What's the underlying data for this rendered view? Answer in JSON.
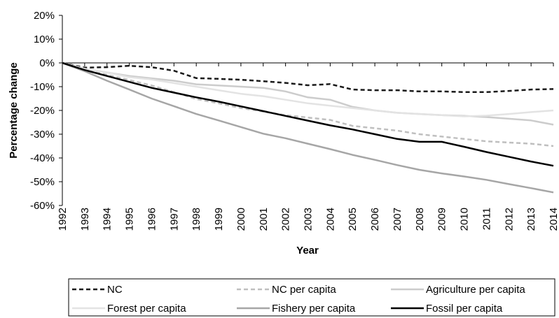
{
  "chart_data": {
    "type": "line",
    "xlabel": "Year",
    "ylabel": "Percentage change",
    "x": [
      "1992",
      "1993",
      "1994",
      "1995",
      "1996",
      "1997",
      "1998",
      "1999",
      "2000",
      "2001",
      "2002",
      "2003",
      "2004",
      "2005",
      "2006",
      "2007",
      "2008",
      "2009",
      "2010",
      "2011",
      "2012",
      "2013",
      "2014"
    ],
    "ylim": [
      -60,
      20
    ],
    "yticks": [
      20,
      10,
      0,
      -10,
      -20,
      -30,
      -40,
      -50,
      -60
    ],
    "ytick_labels": [
      "20%",
      "10%",
      "0%",
      "-10%",
      "-20%",
      "-30%",
      "-40%",
      "-50%",
      "-60%"
    ],
    "grid": false,
    "legend_position": "bottom",
    "series": [
      {
        "name": "NC",
        "color": "#1a1a1a",
        "dash": "dashed",
        "values": [
          0,
          -2,
          -1.8,
          -1.2,
          -1.8,
          -3.3,
          -6.4,
          -6.7,
          -7.1,
          -7.7,
          -8.4,
          -9.4,
          -8.9,
          -11.2,
          -11.5,
          -11.5,
          -12,
          -12,
          -12.3,
          -12.3,
          -11.8,
          -11.2,
          -11
        ]
      },
      {
        "name": "NC per capita",
        "color": "#bfbfbf",
        "dash": "dashed",
        "values": [
          0,
          -3,
          -5,
          -7.2,
          -9.5,
          -12.3,
          -15.2,
          -17,
          -19,
          -20.5,
          -22,
          -23,
          -24,
          -26.5,
          -27.5,
          -28.5,
          -30,
          -31,
          -32,
          -33,
          -33.5,
          -34,
          -35
        ]
      },
      {
        "name": "Agriculture per capita",
        "color": "#cccccc",
        "dash": "solid",
        "values": [
          0,
          -2.5,
          -4,
          -5.5,
          -6.5,
          -7.5,
          -9,
          -9.5,
          -10,
          -10.5,
          -12,
          -14.5,
          -15.5,
          -18.5,
          -20,
          -21,
          -21.5,
          -22,
          -22.3,
          -22.8,
          -23.5,
          -24.2,
          -26
        ]
      },
      {
        "name": "Forest per capita",
        "color": "#e3e3e3",
        "dash": "solid",
        "values": [
          0,
          -2.5,
          -4,
          -6,
          -7,
          -8.5,
          -10,
          -11.5,
          -13,
          -14,
          -15.5,
          -17,
          -18,
          -19,
          -20,
          -21,
          -21.5,
          -22,
          -22.5,
          -22.2,
          -21.5,
          -20.7,
          -20
        ]
      },
      {
        "name": "Fishery per capita",
        "color": "#a6a6a6",
        "dash": "solid",
        "values": [
          0,
          -3.5,
          -7.5,
          -11.2,
          -15,
          -18.2,
          -21.5,
          -24.2,
          -27,
          -29.8,
          -31.7,
          -34,
          -36.3,
          -38.7,
          -40.8,
          -43,
          -45,
          -46.5,
          -47.8,
          -49.2,
          -51,
          -52.7,
          -54.5
        ]
      },
      {
        "name": "Fossil per capita",
        "color": "#000000",
        "dash": "solid",
        "values": [
          0,
          -3,
          -5.5,
          -8,
          -10.5,
          -12.5,
          -14.5,
          -16.3,
          -18.3,
          -20.3,
          -22.3,
          -24.3,
          -26.3,
          -28,
          -30,
          -32,
          -33.2,
          -33.2,
          -35.3,
          -37.5,
          -39.5,
          -41.5,
          -43.3
        ]
      }
    ]
  }
}
